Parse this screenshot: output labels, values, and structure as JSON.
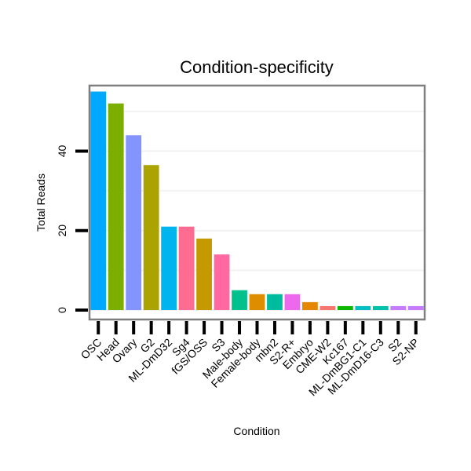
{
  "chart_data": {
    "type": "bar",
    "title": "Condition-specificity",
    "xlabel": "Condition",
    "ylabel": "Total Reads",
    "ylim": [
      0,
      56.5
    ],
    "yticks": [
      0,
      20,
      40
    ],
    "grid": true,
    "categories": [
      "OSC",
      "Head",
      "Ovary",
      "G2",
      "ML-DmD32",
      "Sg4",
      "fGS/OSS",
      "S3",
      "Male-body",
      "Female-body",
      "mbn2",
      "S2-R+",
      "Embryo",
      "CME-W2",
      "Kc167",
      "ML-DmBG1-C1",
      "ML-DmD16-C3",
      "S2",
      "S2-NP"
    ],
    "values": [
      55,
      52,
      44,
      36.5,
      21,
      21,
      18,
      14,
      5,
      4,
      4,
      4,
      2,
      1,
      1,
      1,
      1,
      1,
      1
    ],
    "colors": [
      "#00a9ff",
      "#7cae00",
      "#8494ff",
      "#aba300",
      "#00b4f0",
      "#ff6c91",
      "#c49a00",
      "#ff68a1",
      "#00c08b",
      "#de8c00",
      "#00bc9e",
      "#ed68ed",
      "#e58700",
      "#f8766d",
      "#0cb702",
      "#00bfc4",
      "#00c1a9",
      "#c77cff",
      "#c77cff"
    ]
  }
}
